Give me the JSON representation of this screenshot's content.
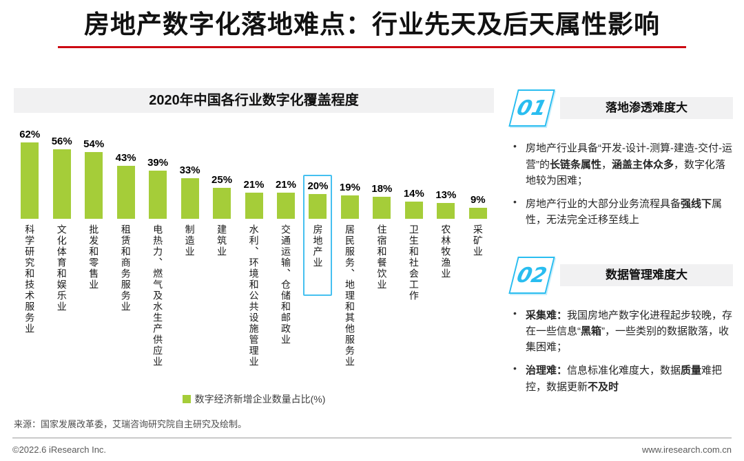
{
  "page": {
    "title": "房地产数字化落地难点：行业先天及后天属性影响",
    "source": "来源：国家发展改革委，艾瑞咨询研究院自主研究及绘制。",
    "footer_left": "©2022.6 iResearch Inc.",
    "footer_right": "www.iresearch.com.cn"
  },
  "colors": {
    "accent_red": "#CC0711",
    "bar_green": "#A5CD39",
    "cyan": "#29BDF0",
    "highlight_box": "#45C0F0",
    "panel_gray": "#F1F1F2"
  },
  "chart_data": {
    "type": "bar",
    "title": "2020年中国各行业数字化覆盖程度",
    "categories": [
      "科学研究和技术服务业",
      "文化体育和娱乐业",
      "批发和零售业",
      "租赁和商务服务业",
      "电热力、燃气及水生产供应业",
      "制造业",
      "建筑业",
      "水利、环境和公共设施管理业",
      "交通运输、仓储和邮政业",
      "房地产业",
      "居民服务、地理和其他服务业",
      "住宿和餐饮业",
      "卫生和社会工作",
      "农林牧渔业",
      "采矿业"
    ],
    "values": [
      62,
      56,
      54,
      43,
      39,
      33,
      25,
      21,
      21,
      20,
      19,
      18,
      14,
      13,
      9
    ],
    "unit": "%",
    "highlight_index": 9,
    "highlight_category": "房地产业",
    "legend": "数字经济新增企业数量占比(%)",
    "xlabel": "",
    "ylabel": "",
    "ylim": [
      0,
      70
    ],
    "bar_color": "#A5CD39",
    "highlight_box_color": "#45C0F0"
  },
  "panels": [
    {
      "number": "01",
      "heading": "落地渗透难度大",
      "bullets": [
        {
          "segments": [
            {
              "text": "房地产行业具备“开发-设计-测算-建造-交付-运营”的"
            },
            {
              "text": "长链条属性",
              "bold": true
            },
            {
              "text": "，"
            },
            {
              "text": "涵盖主体众多",
              "bold": true
            },
            {
              "text": "，数字化落地较为困难；"
            }
          ]
        },
        {
          "segments": [
            {
              "text": "房地产行业的大部分业务流程具备"
            },
            {
              "text": "强线下",
              "bold": true
            },
            {
              "text": "属性，无法完全迁移至线上"
            }
          ]
        }
      ]
    },
    {
      "number": "02",
      "heading": "数据管理难度大",
      "bullets": [
        {
          "segments": [
            {
              "text": "采集难：",
              "bold": true
            },
            {
              "text": "我国房地产数字化进程起步较晚，存在一些信息“"
            },
            {
              "text": "黑箱",
              "bold": true
            },
            {
              "text": "”，一些类别的数据散落，收集困难；"
            }
          ]
        },
        {
          "segments": [
            {
              "text": "治理难：",
              "bold": true
            },
            {
              "text": "信息标准化难度大，数据"
            },
            {
              "text": "质量",
              "bold": true
            },
            {
              "text": "难把控，数据更新"
            },
            {
              "text": "不及时",
              "bold": true
            }
          ]
        }
      ]
    }
  ]
}
